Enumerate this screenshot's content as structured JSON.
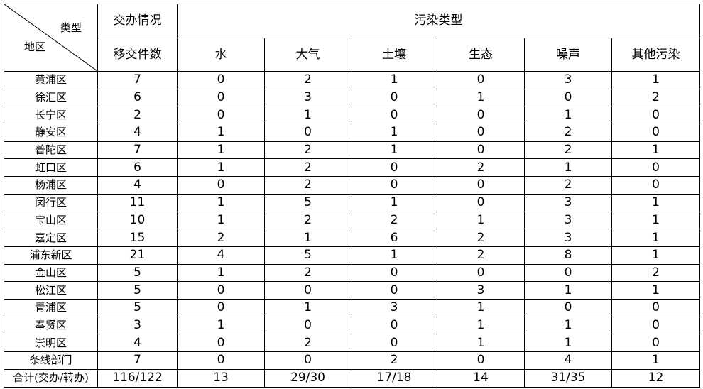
{
  "header": {
    "corner_top": "类型",
    "corner_bottom": "地区",
    "group1": "交办情况",
    "group2": "污染类型",
    "columns": [
      "移交件数",
      "水",
      "大气",
      "土壤",
      "生态",
      "噪声",
      "其他污染"
    ]
  },
  "rows": [
    {
      "region": "黄浦区",
      "values": [
        "7",
        "0",
        "2",
        "1",
        "0",
        "3",
        "1"
      ]
    },
    {
      "region": "徐汇区",
      "values": [
        "6",
        "0",
        "3",
        "0",
        "1",
        "0",
        "2"
      ]
    },
    {
      "region": "长宁区",
      "values": [
        "2",
        "0",
        "1",
        "0",
        "0",
        "1",
        "0"
      ]
    },
    {
      "region": "静安区",
      "values": [
        "4",
        "1",
        "0",
        "1",
        "0",
        "2",
        "0"
      ]
    },
    {
      "region": "普陀区",
      "values": [
        "7",
        "1",
        "2",
        "1",
        "0",
        "2",
        "1"
      ]
    },
    {
      "region": "虹口区",
      "values": [
        "6",
        "1",
        "2",
        "0",
        "2",
        "1",
        "0"
      ]
    },
    {
      "region": "杨浦区",
      "values": [
        "4",
        "0",
        "2",
        "0",
        "0",
        "2",
        "0"
      ]
    },
    {
      "region": "闵行区",
      "values": [
        "11",
        "1",
        "5",
        "1",
        "0",
        "3",
        "1"
      ]
    },
    {
      "region": "宝山区",
      "values": [
        "10",
        "1",
        "2",
        "2",
        "1",
        "3",
        "1"
      ]
    },
    {
      "region": "嘉定区",
      "values": [
        "15",
        "2",
        "1",
        "6",
        "2",
        "3",
        "1"
      ]
    },
    {
      "region": "浦东新区",
      "values": [
        "21",
        "4",
        "5",
        "1",
        "2",
        "8",
        "1"
      ]
    },
    {
      "region": "金山区",
      "values": [
        "5",
        "1",
        "2",
        "0",
        "0",
        "0",
        "2"
      ]
    },
    {
      "region": "松江区",
      "values": [
        "5",
        "0",
        "0",
        "0",
        "3",
        "1",
        "1"
      ]
    },
    {
      "region": "青浦区",
      "values": [
        "5",
        "0",
        "1",
        "3",
        "1",
        "0",
        "0"
      ]
    },
    {
      "region": "奉贤区",
      "values": [
        "3",
        "1",
        "0",
        "0",
        "1",
        "1",
        "0"
      ]
    },
    {
      "region": "崇明区",
      "values": [
        "4",
        "0",
        "2",
        "0",
        "1",
        "1",
        "0"
      ]
    },
    {
      "region": "条线部门",
      "values": [
        "7",
        "0",
        "0",
        "2",
        "0",
        "4",
        "1"
      ]
    }
  ],
  "total": {
    "label": "合计(交办/转办)",
    "values": [
      "116/122",
      "13",
      "29/30",
      "17/18",
      "14",
      "31/35",
      "12"
    ]
  }
}
